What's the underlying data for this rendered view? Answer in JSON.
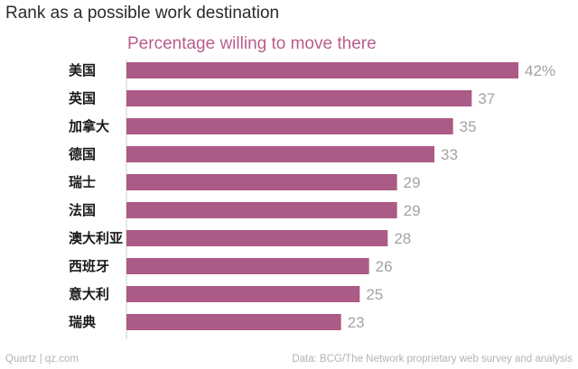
{
  "colors": {
    "bar": "#ac5a86",
    "subtitle": "#b85d8d",
    "axis": "#cfcfcf"
  },
  "footer": {
    "left": "Quartz | qz.com",
    "right": "Data: BCG/The Network proprietary web survey and analysis"
  },
  "chart_data": {
    "type": "bar",
    "orientation": "horizontal",
    "title": "Rank as a possible work destination",
    "subtitle": "Percentage willing to move there",
    "categories": [
      "美国",
      "英国",
      "加拿大",
      "德国",
      "瑞士",
      "法国",
      "澳大利亚",
      "西班牙",
      "意大利",
      "瑞典"
    ],
    "values": [
      42,
      37,
      35,
      33,
      29,
      29,
      28,
      26,
      25,
      23
    ],
    "value_labels": [
      "42%",
      "37",
      "35",
      "33",
      "29",
      "29",
      "28",
      "26",
      "25",
      "23"
    ],
    "xlim": [
      0,
      42
    ],
    "grid": false
  }
}
